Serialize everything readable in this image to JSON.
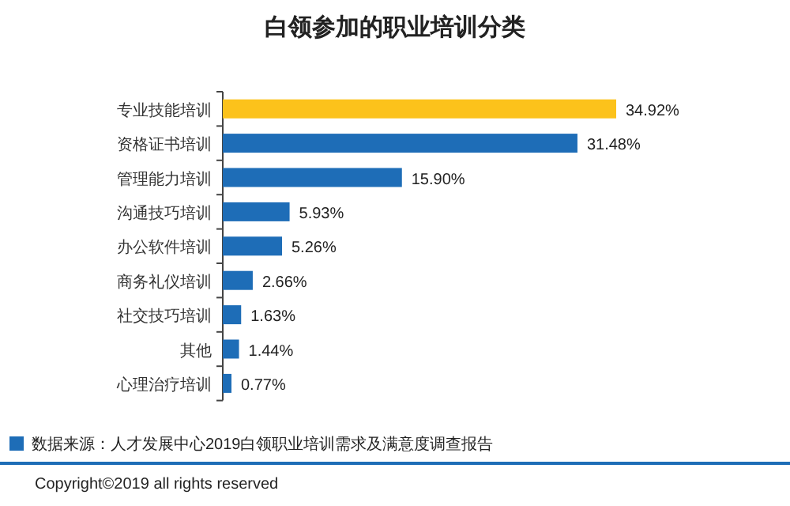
{
  "chart_data": {
    "type": "bar",
    "orientation": "horizontal",
    "title": "白领参加的职业培训分类",
    "categories": [
      "专业技能培训",
      "资格证书培训",
      "管理能力培训",
      "沟通技巧培训",
      "办公软件培训",
      "商务礼仪培训",
      "社交技巧培训",
      "其他",
      "心理治疗培训"
    ],
    "values": [
      34.92,
      31.48,
      15.9,
      5.93,
      5.26,
      2.66,
      1.63,
      1.44,
      0.77
    ],
    "value_labels": [
      "34.92%",
      "31.48%",
      "15.90%",
      "5.93%",
      "5.26%",
      "2.66%",
      "1.63%",
      "1.44%",
      "0.77%"
    ],
    "colors": [
      "#fcc21b",
      "#1e6db7",
      "#1e6db7",
      "#1e6db7",
      "#1e6db7",
      "#1e6db7",
      "#1e6db7",
      "#1e6db7",
      "#1e6db7"
    ],
    "annotations": [
      "数据来源：人才发展中心2019白领职业培训需求及满意度调查报告",
      "Copyright©2019 all rights reserved"
    ]
  }
}
